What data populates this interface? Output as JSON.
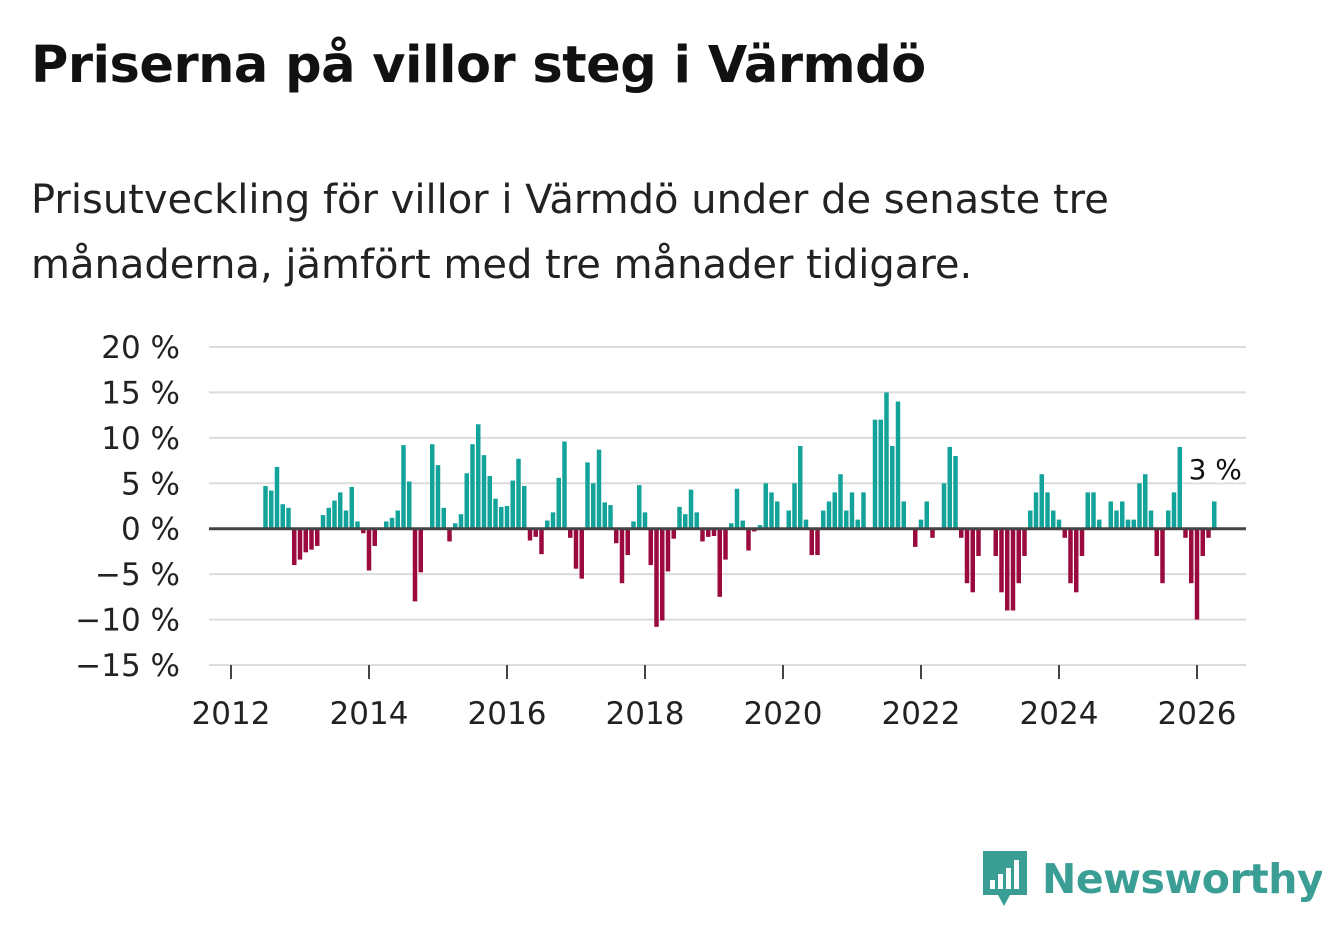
{
  "title": "Priserna på villor steg i Värmdö",
  "subtitle": "Prisutveckling för villor i Värmdö under de senaste tre månaderna, jämfört med tre månader tidigare.",
  "brand": {
    "name": "Newsworthy",
    "color": "#3a9e95",
    "icon": "newsworthy-logo-icon"
  },
  "colors": {
    "positive": "#14a39a",
    "negative": "#9b0a3e",
    "grid": "#dcdcdc",
    "zero": "#444444"
  },
  "chart_data": {
    "type": "bar",
    "title": "Priserna på villor steg i Värmdö",
    "xlabel": "",
    "ylabel": "",
    "ylim": [
      -15,
      20
    ],
    "y_ticks": [
      20,
      15,
      10,
      5,
      0,
      -5,
      -10,
      -15
    ],
    "y_tick_labels": [
      "20 %",
      "15 %",
      "10 %",
      "5 %",
      "0 %",
      "−5 %",
      "−10 %",
      "−15 %"
    ],
    "x_ticks": [
      2012,
      2014,
      2016,
      2018,
      2020,
      2022,
      2024,
      2026
    ],
    "x_tick_labels": [
      "2012",
      "2014",
      "2016",
      "2018",
      "2020",
      "2022",
      "2024",
      "2026"
    ],
    "start_year": 2012,
    "start_month": 7,
    "last_value_label": "3 %",
    "values": [
      4.7,
      4.2,
      6.8,
      2.7,
      2.3,
      -4.0,
      -3.4,
      -2.6,
      -2.3,
      -1.9,
      1.5,
      2.3,
      3.1,
      4.0,
      2.0,
      4.6,
      0.8,
      -0.5,
      -4.6,
      -1.9,
      0.0,
      0.8,
      1.2,
      2.0,
      9.2,
      5.2,
      -8.0,
      -4.8,
      0.0,
      9.3,
      7.0,
      2.3,
      -1.4,
      0.6,
      1.6,
      6.1,
      9.3,
      11.5,
      8.1,
      5.8,
      3.3,
      2.4,
      2.5,
      5.3,
      7.7,
      4.7,
      -1.3,
      -0.9,
      -2.8,
      0.9,
      1.8,
      5.6,
      9.6,
      -1.0,
      -4.4,
      -5.5,
      7.3,
      5.0,
      8.7,
      2.9,
      2.6,
      -1.6,
      -6.0,
      -2.9,
      0.8,
      4.8,
      1.8,
      -4.0,
      -10.8,
      -10.1,
      -4.7,
      -1.1,
      2.4,
      1.6,
      4.3,
      1.8,
      -1.4,
      -0.9,
      -0.8,
      -7.5,
      -3.4,
      0.6,
      4.4,
      0.9,
      -2.4,
      -0.3,
      0.4,
      5.0,
      4.0,
      3.0,
      0.0,
      2.0,
      5.0,
      9.1,
      1.0,
      -2.9,
      -2.9,
      2.0,
      3.0,
      4.0,
      6.0,
      2.0,
      4.0,
      1.0,
      4.0,
      0.0,
      12.0,
      12.0,
      15.0,
      9.1,
      14.0,
      3.0,
      0.0,
      -2.0,
      1.0,
      3.0,
      -1.0,
      0.0,
      5.0,
      9.0,
      8.0,
      -1.0,
      -6.0,
      -7.0,
      -3.0,
      0.0,
      0.0,
      -3.0,
      -7.0,
      -9.0,
      -9.0,
      -6.0,
      -3.0,
      2.0,
      4.0,
      6.0,
      4.0,
      2.0,
      1.0,
      -1.0,
      -6.0,
      -7.0,
      -3.0,
      4.0,
      4.0,
      1.0,
      0.0,
      3.0,
      2.0,
      3.0,
      1.0,
      1.0,
      5.0,
      6.0,
      2.0,
      -3.0,
      -6.0,
      2.0,
      4.0,
      9.0,
      -1.0,
      -6.0,
      -10.0,
      -3.0,
      -1.0,
      3.0
    ]
  }
}
